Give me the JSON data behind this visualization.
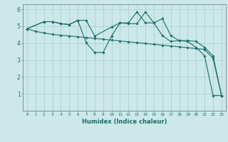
{
  "xlabel": "Humidex (Indice chaleur)",
  "bg_color": "#cce8e8",
  "grid_color": "#aacccc",
  "line_color": "#1a6e6a",
  "xlim": [
    -0.5,
    23.5
  ],
  "ylim": [
    0,
    6.3
  ],
  "xticks": [
    0,
    1,
    2,
    3,
    4,
    5,
    6,
    7,
    8,
    9,
    10,
    11,
    12,
    13,
    14,
    15,
    16,
    17,
    18,
    19,
    20,
    21,
    22,
    23
  ],
  "yticks": [
    1,
    2,
    3,
    4,
    5,
    6
  ],
  "series": [
    {
      "x": [
        0,
        1,
        2,
        3,
        4,
        5,
        6,
        7,
        8,
        9,
        10,
        11,
        12,
        13,
        14,
        15,
        16,
        17,
        18,
        19,
        20,
        21,
        22,
        23
      ],
      "y": [
        4.85,
        4.7,
        4.6,
        4.52,
        4.47,
        4.43,
        4.38,
        4.33,
        4.28,
        4.23,
        4.18,
        4.13,
        4.08,
        4.03,
        3.98,
        3.93,
        3.88,
        3.83,
        3.78,
        3.73,
        3.68,
        3.63,
        3.1,
        0.9
      ]
    },
    {
      "x": [
        0,
        2,
        3,
        4,
        5,
        6,
        7,
        8,
        10,
        11,
        12,
        13,
        14,
        15,
        16,
        17,
        18,
        19,
        20,
        21,
        22,
        23
      ],
      "y": [
        4.85,
        5.27,
        5.27,
        5.15,
        5.1,
        5.35,
        5.35,
        4.42,
        4.95,
        5.2,
        5.15,
        5.15,
        5.85,
        5.2,
        5.45,
        4.45,
        4.15,
        4.15,
        4.1,
        3.75,
        3.25,
        0.9
      ]
    },
    {
      "x": [
        0,
        2,
        3,
        4,
        5,
        6,
        7,
        8,
        9,
        10,
        11,
        12,
        13,
        14,
        15,
        16,
        17,
        18,
        19,
        20,
        21,
        22,
        23
      ],
      "y": [
        4.85,
        5.27,
        5.27,
        5.15,
        5.1,
        5.35,
        4.02,
        3.45,
        3.45,
        4.42,
        5.2,
        5.2,
        5.85,
        5.2,
        5.2,
        4.45,
        4.1,
        4.15,
        4.1,
        3.75,
        3.25,
        0.9,
        0.9
      ]
    }
  ]
}
